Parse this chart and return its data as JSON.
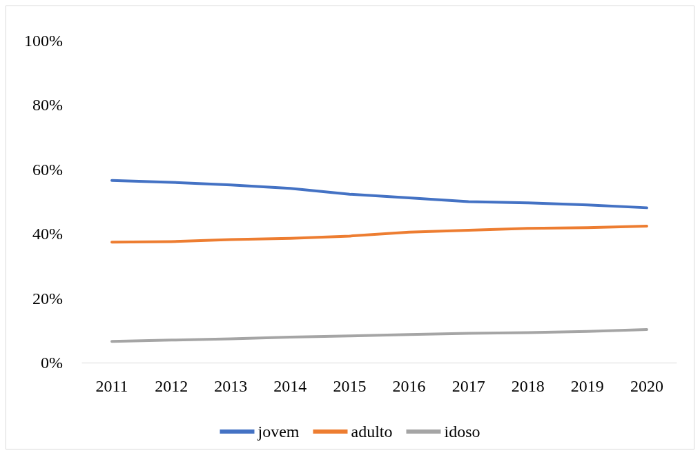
{
  "chart_data": {
    "type": "line",
    "categories": [
      "2011",
      "2012",
      "2013",
      "2014",
      "2015",
      "2016",
      "2017",
      "2018",
      "2019",
      "2020"
    ],
    "series": [
      {
        "name": "jovem",
        "color": "#4472c4",
        "values": [
          56.6,
          56.0,
          55.2,
          54.1,
          52.3,
          51.2,
          50.0,
          49.6,
          49.0,
          48.1
        ]
      },
      {
        "name": "adulto",
        "color": "#ed7d31",
        "values": [
          37.4,
          37.6,
          38.2,
          38.6,
          39.3,
          40.5,
          41.1,
          41.7,
          41.9,
          42.4
        ]
      },
      {
        "name": "idoso",
        "color": "#a5a5a5",
        "values": [
          6.6,
          7.0,
          7.4,
          7.9,
          8.3,
          8.7,
          9.1,
          9.3,
          9.7,
          10.3
        ]
      }
    ],
    "ylim": [
      0,
      100
    ],
    "yticks": [
      {
        "value": 0,
        "label": "0%"
      },
      {
        "value": 20,
        "label": "20%"
      },
      {
        "value": 40,
        "label": "40%"
      },
      {
        "value": 60,
        "label": "60%"
      },
      {
        "value": 80,
        "label": "80%"
      },
      {
        "value": 100,
        "label": "100%"
      }
    ],
    "grid": false,
    "legend": "bottom",
    "marker": "none",
    "line_style": "solid"
  }
}
